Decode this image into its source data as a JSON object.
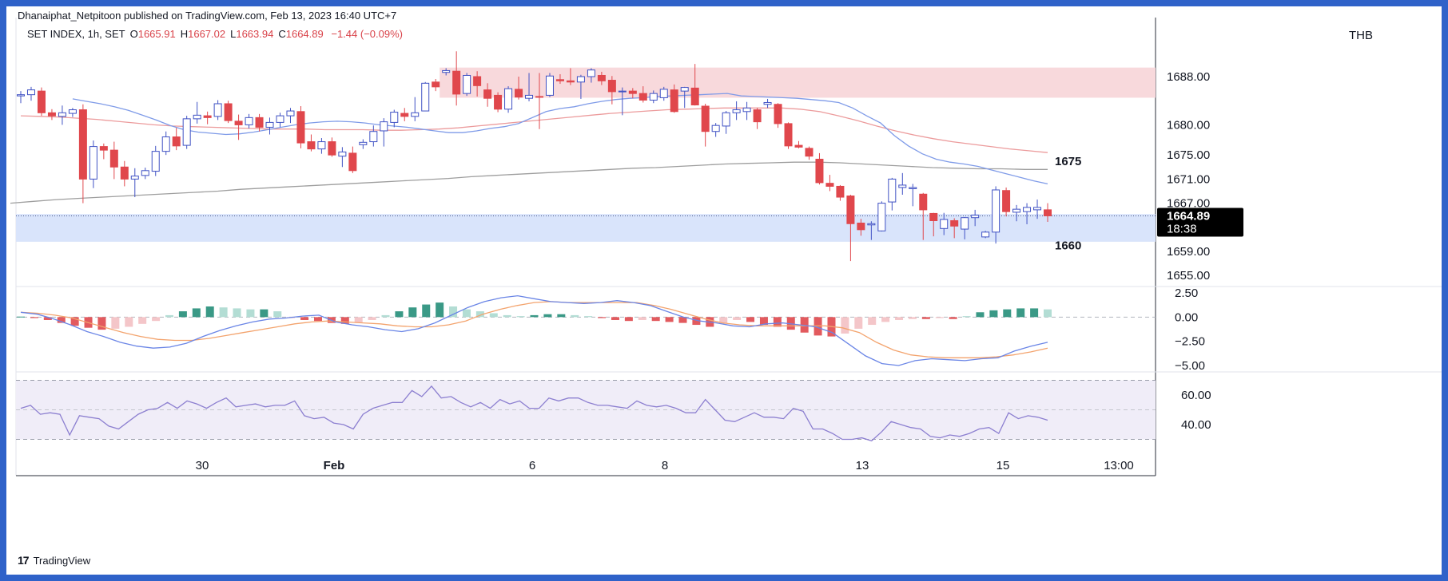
{
  "header": {
    "published": "Dhanaiphat_Netpitoon published on TradingView.com, Feb 13, 2023 16:40 UTC+7",
    "symbol": "SET INDEX, 1h, SET",
    "open_label": "O",
    "open": "1665.91",
    "high_label": "H",
    "high": "1667.02",
    "low_label": "L",
    "low": "1663.94",
    "close_label": "C",
    "close": "1664.89",
    "change": "−1.44 (−0.09%)"
  },
  "currency": "THB",
  "footer": {
    "brand": "TradingView",
    "logo": "17"
  },
  "colors": {
    "up": "#4052c4",
    "down": "#e0474c",
    "resistance_zone": "#f8d9dc",
    "support_zone": "#d9e4fb",
    "ma_fast": "#7f9be8",
    "ma_mid": "#ec9b9c",
    "ma_slow": "#9e9e9e",
    "macd": "#6a85e6",
    "signal": "#f3a36d",
    "hist_pos_strong": "#3a9986",
    "hist_pos_weak": "#b3ddd4",
    "hist_neg_strong": "#e25a5e",
    "hist_neg_weak": "#f4c6c9",
    "rsi": "#8c7fd0",
    "rsi_band": "#f0edf8"
  },
  "chart_data": [
    {
      "type": "candlestick",
      "title": "SET INDEX, 1h, SET",
      "y_ticks": [
        "1688.00",
        "1680.00",
        "1675.00",
        "1671.00",
        "1667.00",
        "1659.00",
        "1655.00"
      ],
      "x_ticks": [
        "30",
        "Feb",
        "6",
        "8",
        "13",
        "15",
        "13:00"
      ],
      "last_price": "1664.89",
      "countdown": "18:38",
      "annotations": [
        "1675",
        "1660"
      ],
      "zones": [
        {
          "name": "resistance",
          "top": 1689.5,
          "bottom": 1684.5
        },
        {
          "name": "support",
          "top": 1665.2,
          "bottom": 1660.6
        }
      ],
      "ohlc": [
        [
          1684.8,
          1685.6,
          1683.6,
          1685.0
        ],
        [
          1685.0,
          1686.3,
          1684.0,
          1685.8
        ],
        [
          1685.6,
          1686.2,
          1681.5,
          1682.0
        ],
        [
          1682.0,
          1682.6,
          1680.8,
          1681.5
        ],
        [
          1681.4,
          1683.2,
          1680.0,
          1682.0
        ],
        [
          1681.9,
          1682.8,
          1681.3,
          1682.5
        ],
        [
          1682.5,
          1683.4,
          1667.0,
          1671.0
        ],
        [
          1671.0,
          1677.4,
          1669.5,
          1676.4
        ],
        [
          1676.4,
          1676.9,
          1674.3,
          1675.8
        ],
        [
          1675.8,
          1677.2,
          1671.0,
          1673.0
        ],
        [
          1673.0,
          1674.0,
          1669.8,
          1671.0
        ],
        [
          1671.0,
          1672.8,
          1668.0,
          1671.5
        ],
        [
          1671.6,
          1672.9,
          1671.0,
          1672.4
        ],
        [
          1672.3,
          1676.5,
          1671.5,
          1675.6
        ],
        [
          1675.6,
          1678.9,
          1675.0,
          1678.0
        ],
        [
          1678.0,
          1679.5,
          1675.8,
          1676.5
        ],
        [
          1676.6,
          1681.5,
          1676.0,
          1681.0
        ],
        [
          1681.0,
          1683.8,
          1680.2,
          1681.6
        ],
        [
          1681.5,
          1682.2,
          1680.1,
          1681.2
        ],
        [
          1681.4,
          1684.1,
          1680.8,
          1683.5
        ],
        [
          1683.5,
          1684.0,
          1680.3,
          1680.7
        ],
        [
          1680.6,
          1681.7,
          1677.5,
          1680.0
        ],
        [
          1680.0,
          1681.8,
          1679.4,
          1681.2
        ],
        [
          1681.2,
          1681.8,
          1678.9,
          1679.6
        ],
        [
          1679.6,
          1681.2,
          1678.4,
          1680.4
        ],
        [
          1680.4,
          1682.0,
          1679.6,
          1681.5
        ],
        [
          1681.5,
          1682.8,
          1680.3,
          1682.3
        ],
        [
          1682.2,
          1683.1,
          1676.1,
          1677.0
        ],
        [
          1677.2,
          1678.4,
          1675.6,
          1676.0
        ],
        [
          1676.0,
          1677.8,
          1675.2,
          1677.2
        ],
        [
          1677.2,
          1677.9,
          1674.7,
          1675.0
        ],
        [
          1674.8,
          1676.3,
          1673.0,
          1675.5
        ],
        [
          1675.3,
          1676.4,
          1672.0,
          1672.4
        ],
        [
          1676.7,
          1677.6,
          1676.0,
          1677.1
        ],
        [
          1677.2,
          1679.9,
          1676.4,
          1678.9
        ],
        [
          1679.0,
          1681.1,
          1676.4,
          1680.5
        ],
        [
          1680.4,
          1682.5,
          1679.6,
          1682.1
        ],
        [
          1681.9,
          1682.8,
          1680.6,
          1681.4
        ],
        [
          1681.4,
          1684.6,
          1680.6,
          1682.0
        ],
        [
          1682.3,
          1687.1,
          1682.3,
          1686.9
        ],
        [
          1687.1,
          1687.6,
          1685.6,
          1686.3
        ],
        [
          1688.7,
          1689.4,
          1688.2,
          1689.0
        ],
        [
          1688.9,
          1692.2,
          1683.2,
          1685.1
        ],
        [
          1685.2,
          1688.6,
          1684.8,
          1688.2
        ],
        [
          1688.0,
          1688.9,
          1684.7,
          1686.5
        ],
        [
          1685.8,
          1686.9,
          1683.0,
          1684.4
        ],
        [
          1684.9,
          1685.4,
          1682.1,
          1682.6
        ],
        [
          1682.6,
          1686.4,
          1682.0,
          1686.0
        ],
        [
          1685.9,
          1688.0,
          1684.2,
          1684.6
        ],
        [
          1684.4,
          1688.6,
          1683.9,
          1684.9
        ],
        [
          1684.7,
          1688.6,
          1679.3,
          1684.6
        ],
        [
          1684.9,
          1688.6,
          1684.6,
          1688.1
        ],
        [
          1687.5,
          1688.4,
          1686.8,
          1687.3
        ],
        [
          1687.3,
          1689.4,
          1686.6,
          1687.1
        ],
        [
          1687.1,
          1688.3,
          1684.3,
          1688.0
        ],
        [
          1688.0,
          1689.4,
          1687.0,
          1689.1
        ],
        [
          1688.2,
          1688.8,
          1686.6,
          1687.3
        ],
        [
          1687.4,
          1688.1,
          1683.4,
          1685.5
        ],
        [
          1685.5,
          1686.2,
          1681.6,
          1685.6
        ],
        [
          1685.6,
          1686.1,
          1684.4,
          1685.2
        ],
        [
          1685.2,
          1686.4,
          1683.7,
          1684.1
        ],
        [
          1684.1,
          1685.7,
          1683.6,
          1685.2
        ],
        [
          1684.5,
          1686.3,
          1684.0,
          1685.9
        ],
        [
          1685.8,
          1686.7,
          1682.0,
          1682.2
        ],
        [
          1685.6,
          1686.3,
          1682.8,
          1686.2
        ],
        [
          1686.1,
          1690.1,
          1683.2,
          1683.3
        ],
        [
          1683.1,
          1683.5,
          1676.4,
          1678.9
        ],
        [
          1678.9,
          1680.3,
          1678.0,
          1679.9
        ],
        [
          1679.8,
          1682.3,
          1678.5,
          1682.0
        ],
        [
          1682.0,
          1683.9,
          1680.8,
          1682.5
        ],
        [
          1682.2,
          1683.8,
          1680.8,
          1682.8
        ],
        [
          1682.5,
          1682.8,
          1679.3,
          1680.5
        ],
        [
          1683.4,
          1684.3,
          1682.8,
          1683.7
        ],
        [
          1683.4,
          1683.6,
          1679.5,
          1680.2
        ],
        [
          1680.2,
          1680.4,
          1676.0,
          1676.5
        ],
        [
          1676.6,
          1677.3,
          1676.1,
          1676.3
        ],
        [
          1676.1,
          1676.4,
          1674.2,
          1674.8
        ],
        [
          1674.3,
          1675.3,
          1670.1,
          1670.4
        ],
        [
          1670.3,
          1671.7,
          1669.0,
          1669.8
        ],
        [
          1669.8,
          1670.0,
          1667.4,
          1668.0
        ],
        [
          1668.2,
          1668.4,
          1657.4,
          1663.6
        ],
        [
          1663.7,
          1664.4,
          1661.6,
          1662.6
        ],
        [
          1663.4,
          1664.0,
          1660.9,
          1663.6
        ],
        [
          1662.4,
          1667.3,
          1662.3,
          1667.0
        ],
        [
          1667.2,
          1671.2,
          1665.8,
          1671.0
        ],
        [
          1669.6,
          1672.0,
          1668.4,
          1670.0
        ],
        [
          1669.4,
          1670.2,
          1666.5,
          1669.6
        ],
        [
          1668.5,
          1668.7,
          1660.9,
          1665.9
        ],
        [
          1665.3,
          1665.4,
          1661.5,
          1664.1
        ],
        [
          1662.8,
          1665.4,
          1661.7,
          1664.3
        ],
        [
          1664.1,
          1664.5,
          1661.2,
          1663.2
        ],
        [
          1662.7,
          1664.7,
          1661.0,
          1664.6
        ],
        [
          1664.6,
          1665.9,
          1663.2,
          1665.0
        ],
        [
          1661.4,
          1662.4,
          1661.2,
          1662.2
        ],
        [
          1662.2,
          1669.8,
          1660.3,
          1669.2
        ],
        [
          1669.1,
          1669.6,
          1664.8,
          1665.6
        ],
        [
          1665.5,
          1666.7,
          1664.0,
          1666.0
        ],
        [
          1665.6,
          1667.0,
          1663.5,
          1666.3
        ],
        [
          1665.9,
          1667.6,
          1664.4,
          1666.3
        ],
        [
          1665.9,
          1667.0,
          1663.9,
          1664.9
        ]
      ],
      "moving_averages": [
        {
          "name": "fast",
          "values": [
            1684.3,
            1683.9,
            1683.5,
            1683.0,
            1682.4,
            1681.6,
            1680.8,
            1679.9,
            1679.2,
            1678.8,
            1678.6,
            1678.4,
            1678.5,
            1678.8,
            1679.2,
            1679.6,
            1680.0,
            1680.3,
            1680.5,
            1680.6,
            1680.5,
            1680.3,
            1680.0,
            1679.8,
            1679.6,
            1679.3,
            1679.0,
            1678.7,
            1678.7,
            1679.0,
            1679.4,
            1679.7,
            1680.2,
            1681.2,
            1682.2,
            1682.7,
            1683.0,
            1683.5,
            1683.9,
            1684.2,
            1684.4,
            1684.5,
            1684.7,
            1684.8,
            1684.9,
            1685.0,
            1685.1,
            1685.2,
            1684.8,
            1684.7,
            1684.6,
            1684.5,
            1684.4,
            1684.2,
            1684.0,
            1683.7,
            1682.8,
            1681.5,
            1680.3,
            1678.2,
            1676.5,
            1675.2,
            1674.3,
            1673.8,
            1673.5,
            1673.1,
            1672.5,
            1671.9,
            1671.3,
            1670.7,
            1670.2
          ]
        },
        {
          "name": "mid",
          "values": [
            1681.5,
            1681.4,
            1681.3,
            1681.1,
            1680.9,
            1680.6,
            1680.3,
            1680.0,
            1679.8,
            1679.7,
            1679.6,
            1679.5,
            1679.4,
            1679.3,
            1679.3,
            1679.3,
            1679.2,
            1679.2,
            1679.2,
            1679.1,
            1679.1,
            1679.2,
            1679.3,
            1679.5,
            1679.8,
            1680.1,
            1680.4,
            1680.7,
            1681.0,
            1681.3,
            1681.6,
            1681.9,
            1682.1,
            1682.3,
            1682.5,
            1682.6,
            1682.7,
            1682.8,
            1682.8,
            1682.8,
            1682.8,
            1682.6,
            1682.2,
            1681.5,
            1680.7,
            1679.8,
            1679.0,
            1678.3,
            1677.7,
            1677.2,
            1676.8,
            1676.4,
            1676.0,
            1675.7,
            1675.4
          ]
        },
        {
          "name": "slow",
          "values": [
            1667.0,
            1667.3,
            1667.6,
            1667.8,
            1668.0,
            1668.2,
            1668.4,
            1668.6,
            1668.8,
            1669.0,
            1669.3,
            1669.5,
            1669.7,
            1669.9,
            1670.1,
            1670.3,
            1670.5,
            1670.7,
            1670.9,
            1671.1,
            1671.4,
            1671.6,
            1671.8,
            1672.0,
            1672.2,
            1672.4,
            1672.6,
            1672.8,
            1672.9,
            1673.1,
            1673.3,
            1673.5,
            1673.6,
            1673.7,
            1673.8,
            1673.8,
            1673.7,
            1673.5,
            1673.3,
            1673.1,
            1672.9,
            1672.8,
            1672.7,
            1672.7,
            1672.6,
            1672.6
          ]
        }
      ]
    },
    {
      "type": "macd",
      "y_ticks": [
        "2.50",
        "0.00",
        "−2.50",
        "−5.00"
      ],
      "macd": [
        0.5,
        0.3,
        -0.2,
        -0.8,
        -1.5,
        -2.0,
        -2.6,
        -3.0,
        -3.2,
        -3.1,
        -2.7,
        -2.0,
        -1.4,
        -0.9,
        -0.5,
        -0.2,
        -0.1,
        0.1,
        0.2,
        -0.5,
        -0.8,
        -1.0,
        -1.3,
        -1.5,
        -1.2,
        -0.6,
        0.2,
        1.0,
        1.6,
        2.0,
        2.2,
        1.9,
        1.6,
        1.5,
        1.4,
        1.5,
        1.7,
        1.5,
        1.2,
        0.6,
        0.0,
        -0.4,
        -0.6,
        -0.9,
        -1.0,
        -0.7,
        -0.6,
        -0.8,
        -1.0,
        -1.6,
        -2.8,
        -4.0,
        -4.8,
        -5.0,
        -4.5,
        -4.3,
        -4.4,
        -4.5,
        -4.3,
        -4.2,
        -3.5,
        -3.0,
        -2.6
      ],
      "signal": [
        0.5,
        0.4,
        0.2,
        -0.1,
        -0.6,
        -1.1,
        -1.6,
        -2.0,
        -2.3,
        -2.4,
        -2.4,
        -2.2,
        -1.9,
        -1.6,
        -1.3,
        -1.0,
        -0.7,
        -0.5,
        -0.4,
        -0.5,
        -0.6,
        -0.7,
        -0.9,
        -1.0,
        -1.0,
        -0.8,
        -0.4,
        0.3,
        0.8,
        1.2,
        1.5,
        1.6,
        1.5,
        1.5,
        1.5,
        1.5,
        1.5,
        1.2,
        0.8,
        0.3,
        -0.2,
        -0.6,
        -0.8,
        -0.9,
        -0.9,
        -0.9,
        -0.9,
        -0.9,
        -1.1,
        -1.6,
        -2.6,
        -3.4,
        -3.9,
        -4.1,
        -4.2,
        -4.2,
        -4.2,
        -4.1,
        -3.9,
        -3.6,
        -3.2
      ],
      "histogram": [
        0.05,
        -0.1,
        -0.3,
        -0.6,
        -0.9,
        -1.1,
        -1.3,
        -1.2,
        -1.0,
        -0.7,
        -0.4,
        0.2,
        0.6,
        0.9,
        1.1,
        1.0,
        0.9,
        0.8,
        0.8,
        0.6,
        -0.1,
        -0.3,
        -0.4,
        -0.6,
        -0.7,
        -0.6,
        -0.3,
        0.2,
        0.6,
        1.0,
        1.3,
        1.5,
        1.1,
        0.8,
        0.6,
        0.4,
        0.2,
        0.1,
        0.2,
        0.3,
        0.3,
        0.2,
        0.1,
        -0.1,
        -0.3,
        -0.4,
        -0.3,
        -0.4,
        -0.5,
        -0.6,
        -0.8,
        -1.0,
        -0.6,
        -0.3,
        -0.5,
        -0.8,
        -1.0,
        -1.3,
        -1.6,
        -1.9,
        -2.0,
        -1.7,
        -1.2,
        -0.8,
        -0.5,
        -0.3,
        -0.2,
        -0.2,
        -0.1,
        -0.2,
        0.1,
        0.5,
        0.7,
        0.8,
        0.9,
        0.9,
        0.8
      ]
    },
    {
      "type": "rsi",
      "y_ticks": [
        "60.00",
        "40.00"
      ],
      "band": [
        30,
        70
      ],
      "values": [
        51,
        53,
        47,
        48,
        47,
        33,
        46,
        45,
        44,
        39,
        37,
        42,
        47,
        50,
        51,
        55,
        51,
        56,
        54,
        51,
        55,
        58,
        52,
        53,
        54,
        52,
        53,
        53,
        56,
        46,
        44,
        45,
        41,
        40,
        37,
        47,
        51,
        53,
        55,
        55,
        63,
        59,
        66,
        58,
        59,
        55,
        52,
        55,
        51,
        57,
        54,
        56,
        51,
        51,
        58,
        56,
        58,
        58,
        55,
        53,
        53,
        52,
        51,
        56,
        53,
        52,
        53,
        51,
        48,
        48,
        57,
        50,
        43,
        42,
        45,
        48,
        45,
        45,
        44,
        51,
        49,
        37,
        37,
        34,
        30,
        30,
        31,
        29,
        35,
        42,
        40,
        38,
        37,
        32,
        31,
        33,
        32,
        34,
        37,
        38,
        34,
        48,
        44,
        46,
        45,
        43
      ]
    }
  ]
}
